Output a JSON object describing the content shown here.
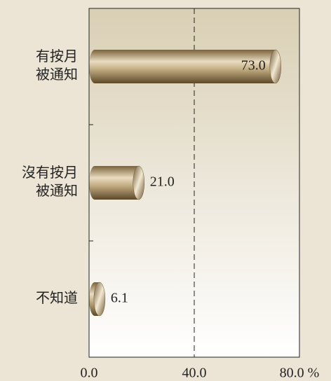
{
  "chart_data": {
    "type": "barh",
    "categories": [
      [
        "有按月",
        "被通知"
      ],
      [
        "沒有按月",
        "被通知"
      ],
      [
        "不知道"
      ]
    ],
    "values": [
      73,
      21,
      6.1
    ],
    "value_labels": [
      "73.0",
      "21.0",
      "6.1"
    ],
    "color": "#a08a5c",
    "xlim": [
      0,
      80
    ],
    "xticks": [
      {
        "value": 0,
        "label": "0.0"
      },
      {
        "value": 40,
        "label": "40.0"
      },
      {
        "value": 80,
        "label": "80.0 %"
      }
    ],
    "grid": true
  }
}
